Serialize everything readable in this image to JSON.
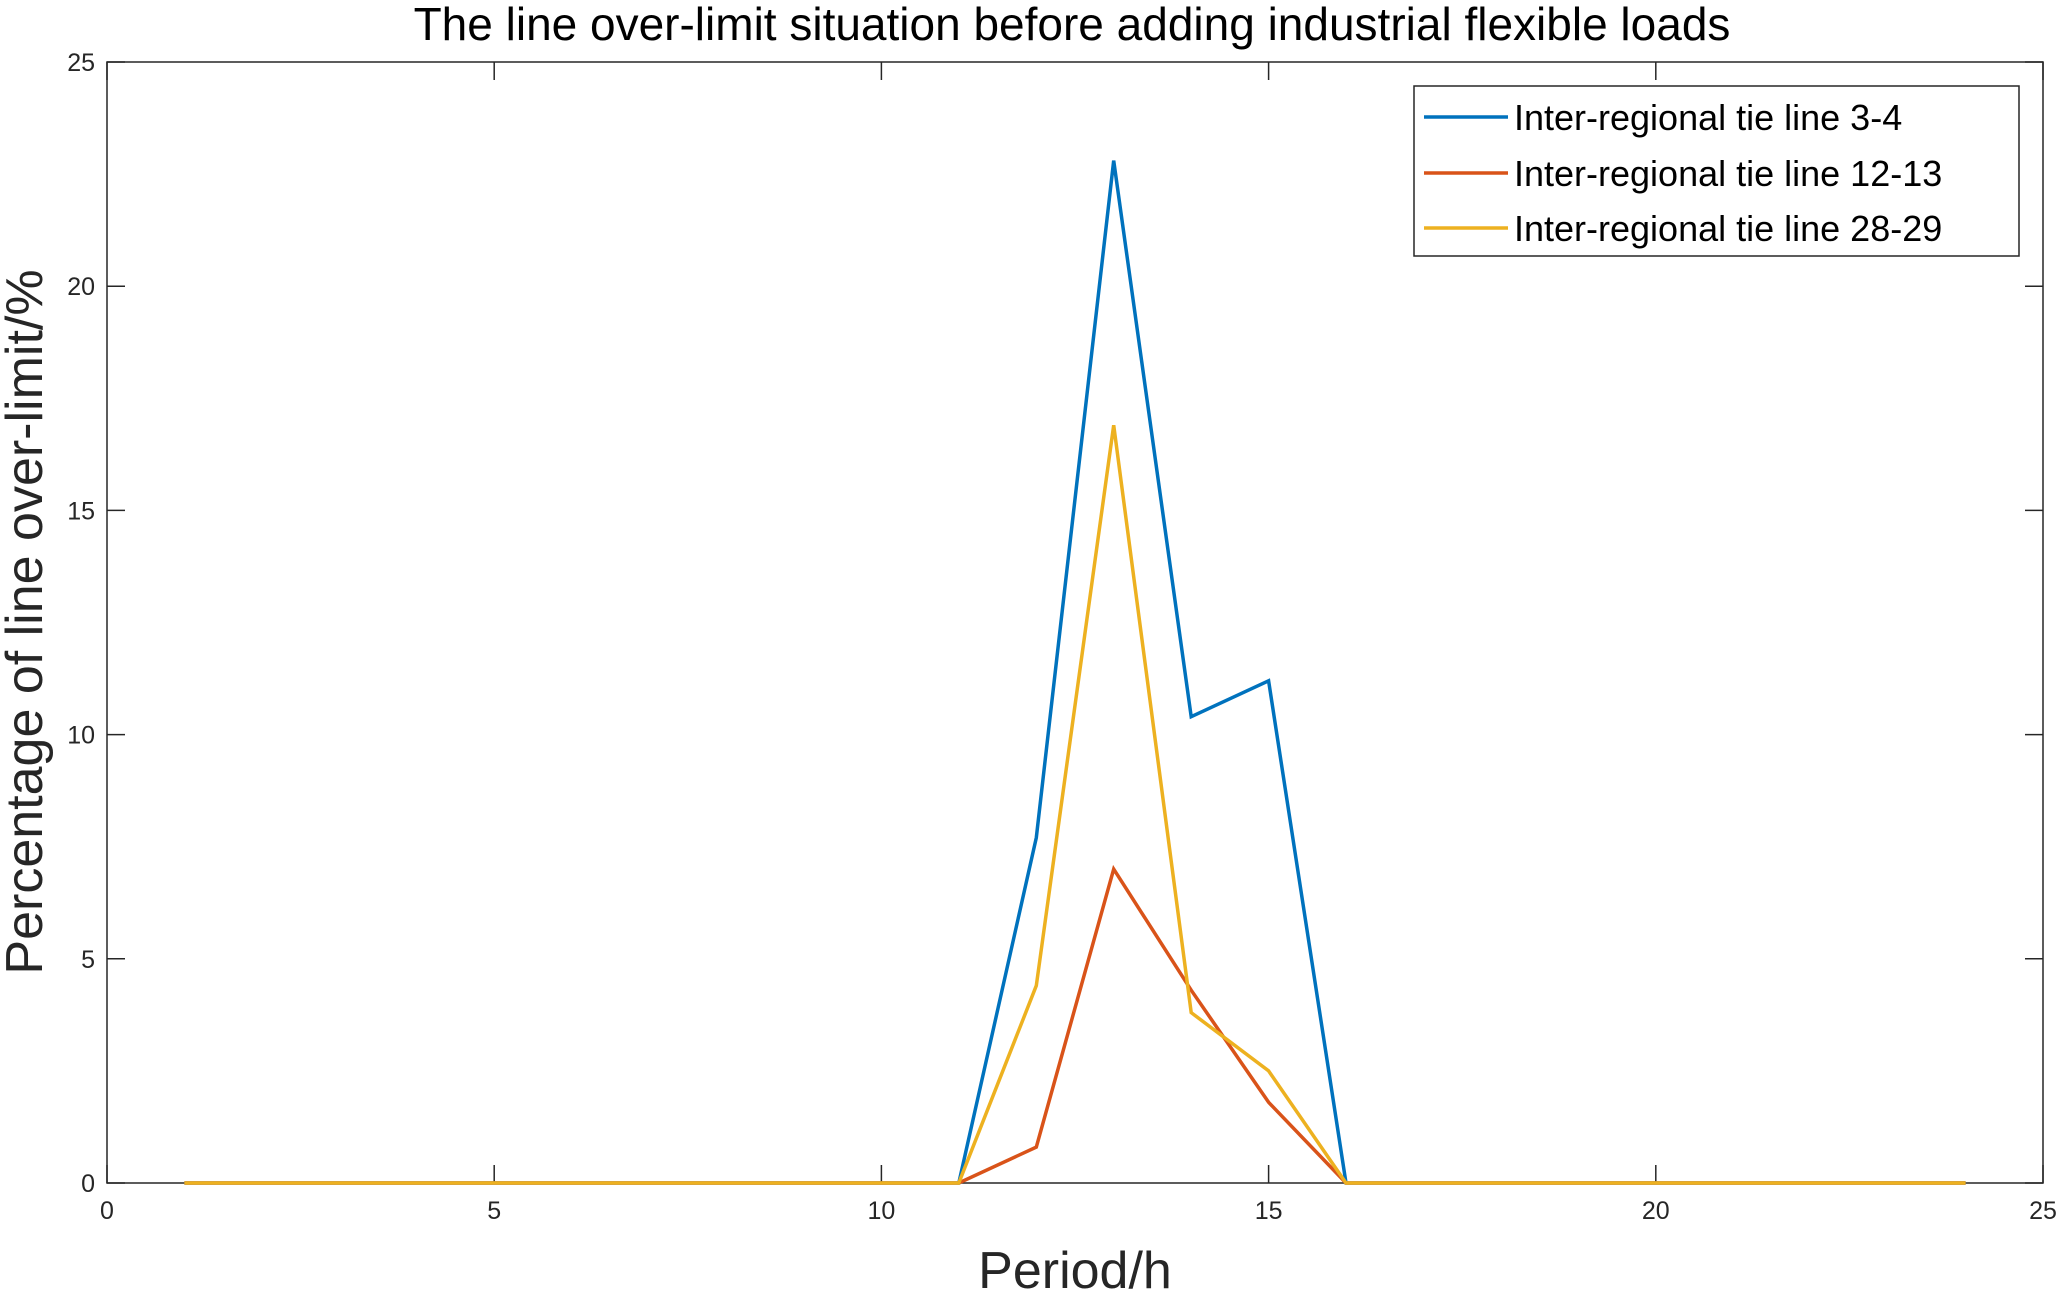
{
  "chart_data": {
    "type": "line",
    "title": "The line over-limit situation before adding industrial flexible loads",
    "xlabel": "Period/h",
    "ylabel": "Percentage of line over-limit/%",
    "xlim": [
      0,
      25
    ],
    "ylim": [
      0,
      25
    ],
    "xticks": [
      0,
      5,
      10,
      15,
      20,
      25
    ],
    "yticks": [
      0,
      5,
      10,
      15,
      20,
      25
    ],
    "grid": false,
    "legend_position": "top-right",
    "x": [
      1,
      2,
      3,
      4,
      5,
      6,
      7,
      8,
      9,
      10,
      11,
      12,
      13,
      14,
      15,
      16,
      17,
      18,
      19,
      20,
      21,
      22,
      23,
      24
    ],
    "series": [
      {
        "name": "Inter-regional tie line 3-4",
        "color": "#0072BD",
        "values": [
          0,
          0,
          0,
          0,
          0,
          0,
          0,
          0,
          0,
          0,
          0,
          7.7,
          22.8,
          10.4,
          11.2,
          0,
          0,
          0,
          0,
          0,
          0,
          0,
          0,
          0
        ]
      },
      {
        "name": "Inter-regional tie line 12-13",
        "color": "#D95319",
        "values": [
          0,
          0,
          0,
          0,
          0,
          0,
          0,
          0,
          0,
          0,
          0,
          0.8,
          7.0,
          4.3,
          1.8,
          0,
          0,
          0,
          0,
          0,
          0,
          0,
          0,
          0
        ]
      },
      {
        "name": "Inter-regional tie line 28-29",
        "color": "#EDB120",
        "values": [
          0,
          0,
          0,
          0,
          0,
          0,
          0,
          0,
          0,
          0,
          0,
          4.4,
          16.9,
          3.8,
          2.5,
          0,
          0,
          0,
          0,
          0,
          0,
          0,
          0,
          0
        ]
      }
    ]
  }
}
